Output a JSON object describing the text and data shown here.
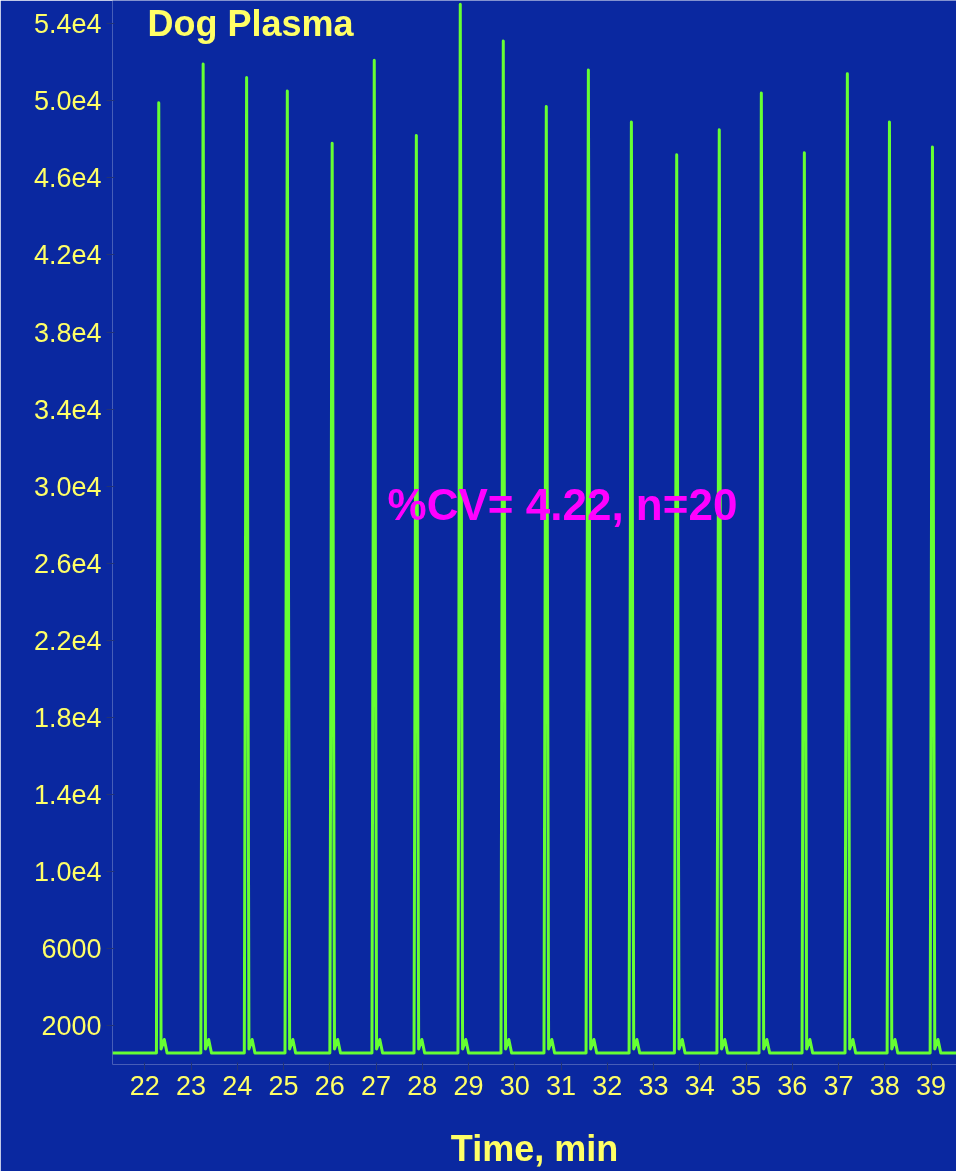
{
  "chart_data": {
    "type": "line",
    "title": "Dog Plasma",
    "xlabel": "Time, min",
    "annotations": [
      "%CV= 4.22, n=20"
    ],
    "xlim": [
      21.3,
      39.55
    ],
    "ylim": [
      0,
      55200
    ],
    "xticks": [
      22,
      23,
      24,
      25,
      26,
      27,
      28,
      29,
      30,
      31,
      32,
      33,
      34,
      35,
      36,
      37,
      38,
      39
    ],
    "yticks": [
      2000,
      6000,
      {
        "value": 10000,
        "label": "1.0e4"
      },
      {
        "value": 14000,
        "label": "1.4e4"
      },
      {
        "value": 18000,
        "label": "1.8e4"
      },
      {
        "value": 22000,
        "label": "2.2e4"
      },
      {
        "value": 26000,
        "label": "2.6e4"
      },
      {
        "value": 30000,
        "label": "3.0e4"
      },
      {
        "value": 34000,
        "label": "3.4e4"
      },
      {
        "value": 38000,
        "label": "3.8e4"
      },
      {
        "value": 42000,
        "label": "4.2e4"
      },
      {
        "value": 46000,
        "label": "4.6e4"
      },
      {
        "value": 50000,
        "label": "5.0e4"
      },
      {
        "value": 54000,
        "label": "5.4e4"
      }
    ],
    "grid": false,
    "marker": "none",
    "line_style": "solid",
    "series": [
      {
        "color": "#66ff33",
        "x": [
          21.3,
          22.25,
          22.3,
          22.35,
          22.42,
          22.48,
          23.21,
          23.26,
          23.31,
          23.38,
          23.44,
          24.15,
          24.2,
          24.25,
          24.32,
          24.38,
          25.03,
          25.08,
          25.13,
          25.2,
          25.26,
          26.0,
          26.05,
          26.1,
          26.17,
          26.23,
          26.91,
          26.96,
          27.01,
          27.08,
          27.14,
          27.82,
          27.87,
          27.92,
          27.99,
          28.05,
          28.77,
          28.82,
          28.87,
          28.94,
          29.0,
          29.7,
          29.75,
          29.8,
          29.87,
          29.93,
          30.63,
          30.68,
          30.73,
          30.8,
          30.86,
          31.54,
          31.59,
          31.64,
          31.71,
          31.77,
          32.47,
          32.52,
          32.57,
          32.64,
          32.7,
          33.45,
          33.5,
          33.55,
          33.62,
          33.68,
          34.37,
          34.42,
          34.47,
          34.54,
          34.6,
          35.28,
          35.33,
          35.38,
          35.45,
          35.51,
          36.21,
          36.26,
          36.31,
          36.38,
          36.44,
          37.14,
          37.19,
          37.24,
          37.31,
          37.37,
          38.05,
          38.1,
          38.15,
          38.22,
          38.28,
          38.98,
          39.03,
          39.08,
          39.15,
          39.21,
          39.55
        ],
        "values": [
          600,
          600,
          49900,
          800,
          1300,
          600,
          600,
          51900,
          800,
          1300,
          600,
          600,
          51200,
          800,
          1300,
          600,
          600,
          50500,
          800,
          1300,
          600,
          600,
          47800,
          800,
          1300,
          600,
          600,
          52100,
          800,
          1300,
          600,
          600,
          48200,
          800,
          1300,
          600,
          600,
          55000,
          800,
          1300,
          600,
          600,
          53100,
          800,
          1300,
          600,
          600,
          49700,
          800,
          1300,
          600,
          600,
          51600,
          800,
          1300,
          600,
          600,
          48900,
          800,
          1300,
          600,
          600,
          47200,
          800,
          1300,
          600,
          600,
          48500,
          800,
          1300,
          600,
          600,
          50400,
          800,
          1300,
          600,
          600,
          47300,
          800,
          1300,
          600,
          600,
          51400,
          800,
          1300,
          600,
          600,
          48900,
          800,
          1300,
          600,
          600,
          47600,
          800,
          1300,
          600,
          600
        ]
      }
    ]
  }
}
